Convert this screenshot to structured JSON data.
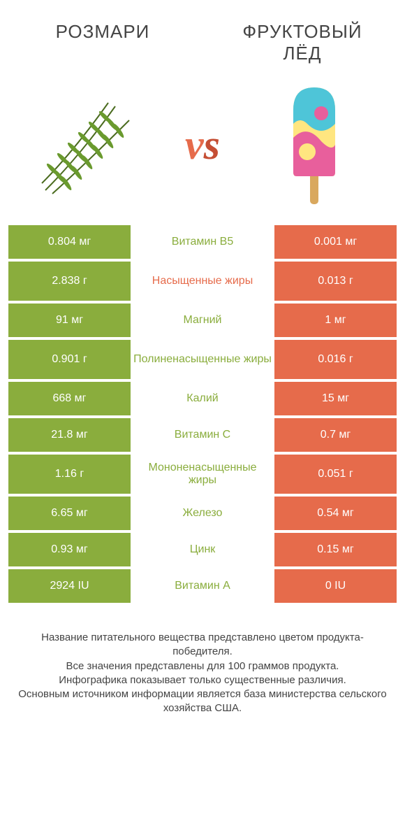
{
  "colors": {
    "green": "#8aad3d",
    "orange": "#e66b4b",
    "bg": "#ffffff",
    "text": "#444444"
  },
  "header": {
    "left_title": "РОЗМАРИ",
    "right_title": "ФРУКТОВЫЙ ЛЁД",
    "vs": "vs"
  },
  "rows": [
    {
      "left": "0.804 мг",
      "label": "Витамин B5",
      "right": "0.001 мг",
      "winner": "left",
      "tall": false
    },
    {
      "left": "2.838 г",
      "label": "Насыщенные жиры",
      "right": "0.013 г",
      "winner": "right",
      "tall": true
    },
    {
      "left": "91 мг",
      "label": "Магний",
      "right": "1 мг",
      "winner": "left",
      "tall": false
    },
    {
      "left": "0.901 г",
      "label": "Полиненасыщенные жиры",
      "right": "0.016 г",
      "winner": "left",
      "tall": true
    },
    {
      "left": "668 мг",
      "label": "Калий",
      "right": "15 мг",
      "winner": "left",
      "tall": false
    },
    {
      "left": "21.8 мг",
      "label": "Витамин C",
      "right": "0.7 мг",
      "winner": "left",
      "tall": false
    },
    {
      "left": "1.16 г",
      "label": "Мононенасыщенные жиры",
      "right": "0.051 г",
      "winner": "left",
      "tall": true
    },
    {
      "left": "6.65 мг",
      "label": "Железо",
      "right": "0.54 мг",
      "winner": "left",
      "tall": false
    },
    {
      "left": "0.93 мг",
      "label": "Цинк",
      "right": "0.15 мг",
      "winner": "left",
      "tall": false
    },
    {
      "left": "2924 IU",
      "label": "Витамин A",
      "right": "0 IU",
      "winner": "left",
      "tall": false
    }
  ],
  "footnote": {
    "line1": "Название питательного вещества представлено цветом продукта-победителя.",
    "line2": "Все значения представлены для 100 граммов продукта.",
    "line3": "Инфографика показывает только существенные различия.",
    "line4": "Основным источником информации является база министерства сельского хозяйства США."
  }
}
